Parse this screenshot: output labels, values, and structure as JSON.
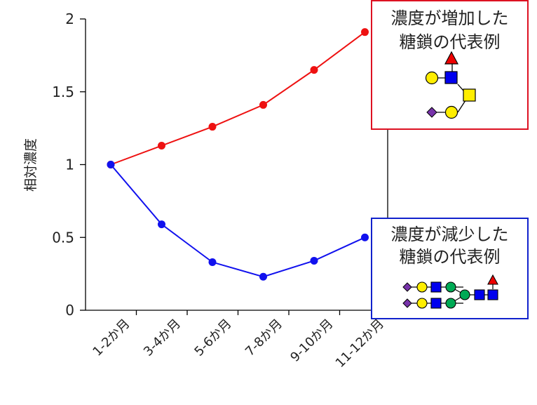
{
  "chart_data": {
    "type": "line",
    "categories": [
      "1-2か月",
      "3-4か月",
      "5-6か月",
      "7-8か月",
      "9-10か月",
      "11-12か月"
    ],
    "series": [
      {
        "name": "濃度が増加した糖鎖の代表例",
        "color": "#ee1111",
        "values": [
          1.0,
          1.13,
          1.26,
          1.41,
          1.65,
          1.91
        ]
      },
      {
        "name": "濃度が減少した糖鎖の代表例",
        "color": "#1111ee",
        "values": [
          1.0,
          0.59,
          0.33,
          0.23,
          0.34,
          0.5
        ]
      }
    ],
    "ylabel": "相対濃度",
    "xlabel": "",
    "ylim": [
      0,
      2
    ],
    "yticks": [
      "0",
      "0.5",
      "1",
      "1.5",
      "2"
    ],
    "grid": false
  },
  "legend": {
    "increase": {
      "line1": "濃度が増加した",
      "line2": "糖鎖の代表例",
      "border_color": "#dd1122"
    },
    "decrease": {
      "line1": "濃度が減少した",
      "line2": "糖鎖の代表例",
      "border_color": "#1122cc"
    }
  },
  "glycan_colors": {
    "galactose": "#ffee00",
    "glcnac": "#0000ee",
    "mannose": "#00aa55",
    "fucose": "#ee0000",
    "sialic_acid": "#7733aa",
    "galnac": "#ffee00"
  }
}
